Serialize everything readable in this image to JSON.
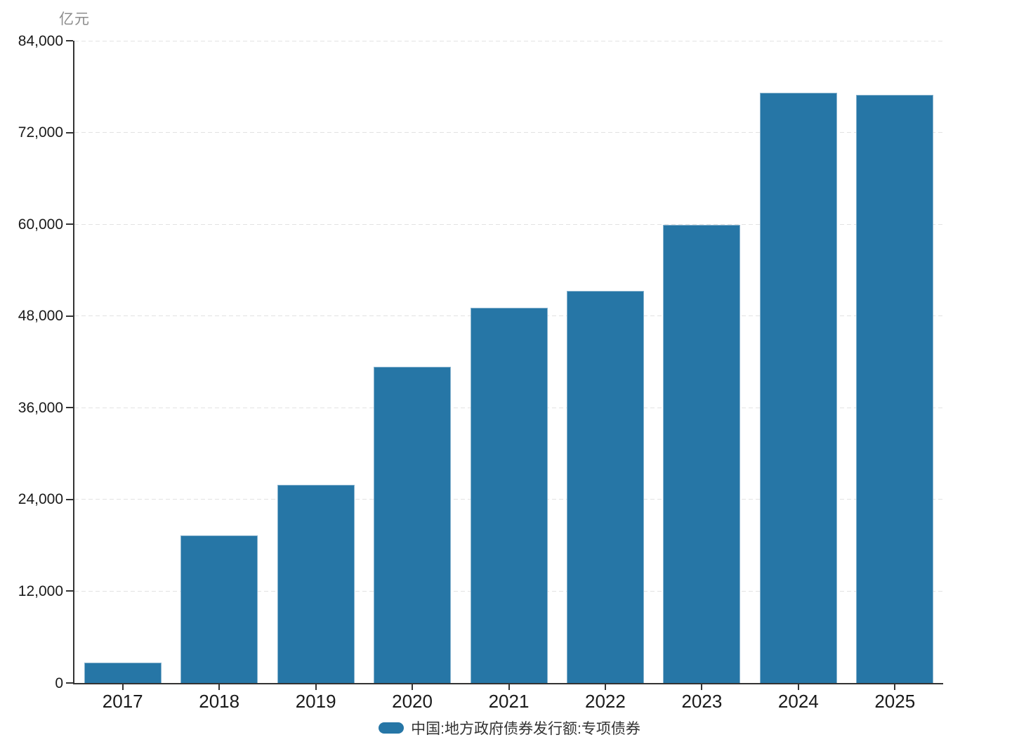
{
  "chart_data": {
    "type": "bar",
    "title": "",
    "unit_label": "亿元",
    "xlabel": "",
    "ylabel": "亿元",
    "categories": [
      "2017",
      "2018",
      "2019",
      "2020",
      "2021",
      "2022",
      "2023",
      "2024",
      "2025"
    ],
    "series": [
      {
        "name": "中国:地方政府债券发行额:专项债券",
        "values": [
          2700,
          19300,
          25900,
          41400,
          49100,
          51300,
          59900,
          77200,
          76900
        ]
      }
    ],
    "ylim": [
      0,
      84000
    ],
    "yticks": [
      0,
      12000,
      24000,
      36000,
      48000,
      60000,
      72000,
      84000
    ],
    "ytick_labels": [
      "0",
      "12,000",
      "24,000",
      "36,000",
      "48,000",
      "60,000",
      "72,000",
      "84,000"
    ],
    "grid": "horizontal-dashed",
    "legend_position": "bottom",
    "colors": {
      "bar": "#2676a6",
      "axis": "#333333",
      "gridline": "#e2e2e2",
      "tick_label": "#1a1a1a",
      "unit_label": "#8c8c8c",
      "legend_text": "#333333",
      "background": "#ffffff"
    }
  }
}
